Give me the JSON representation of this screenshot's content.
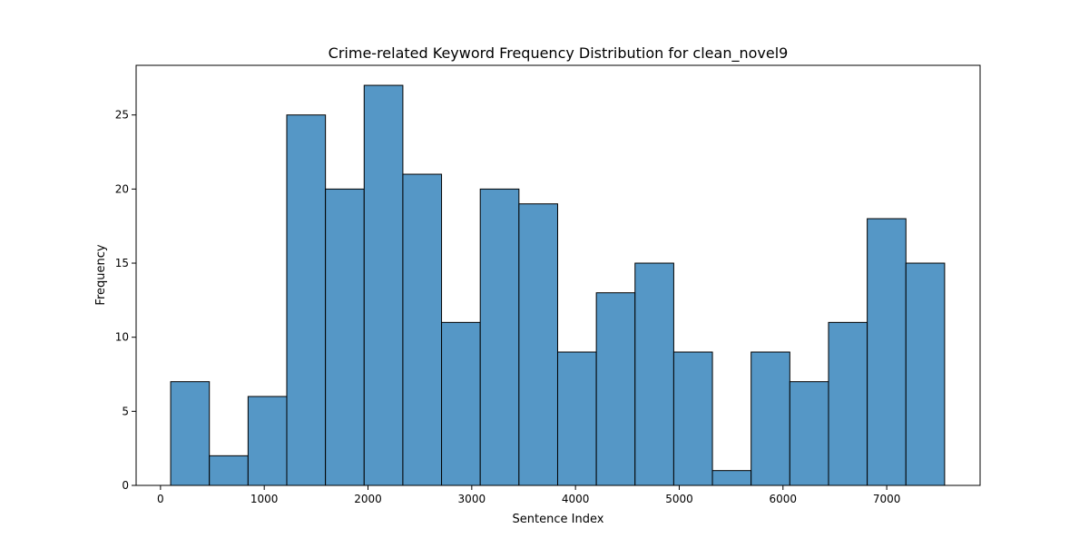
{
  "chart_data": {
    "type": "bar",
    "subtype": "histogram",
    "title": "Crime-related Keyword Frequency Distribution for clean_novel9",
    "xlabel": "Sentence Index",
    "ylabel": "Frequency",
    "xlim": [
      -235,
      7900
    ],
    "ylim": [
      0,
      28.35
    ],
    "xticks": [
      0,
      1000,
      2000,
      3000,
      4000,
      5000,
      6000,
      7000
    ],
    "yticks": [
      0,
      5,
      10,
      15,
      20,
      25
    ],
    "bin_start": 98,
    "bin_width": 373,
    "values": [
      7,
      2,
      6,
      25,
      20,
      27,
      21,
      11,
      20,
      19,
      9,
      13,
      15,
      9,
      1,
      9,
      7,
      11,
      18,
      15
    ],
    "grid": false,
    "legend": "none",
    "colors": {
      "bar_fill": "#5597c6",
      "bar_edge": "#000000"
    }
  }
}
